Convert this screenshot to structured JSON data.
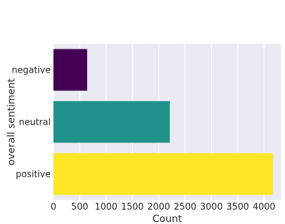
{
  "chart_data": {
    "type": "bar",
    "orientation": "horizontal",
    "categories": [
      "negative",
      "neutral",
      "positive"
    ],
    "values": [
      640,
      2210,
      4170
    ],
    "bar_colors": [
      "#440154",
      "#21918c",
      "#fde725"
    ],
    "title": "",
    "xlabel": "Count",
    "ylabel": "overall sentiment",
    "xlim": [
      0,
      4320
    ],
    "xticks": [
      0,
      500,
      1000,
      1500,
      2000,
      2500,
      3000,
      3500,
      4000
    ],
    "grid": true,
    "background": "#eaeaf2",
    "grid_color": "#ffffff"
  }
}
